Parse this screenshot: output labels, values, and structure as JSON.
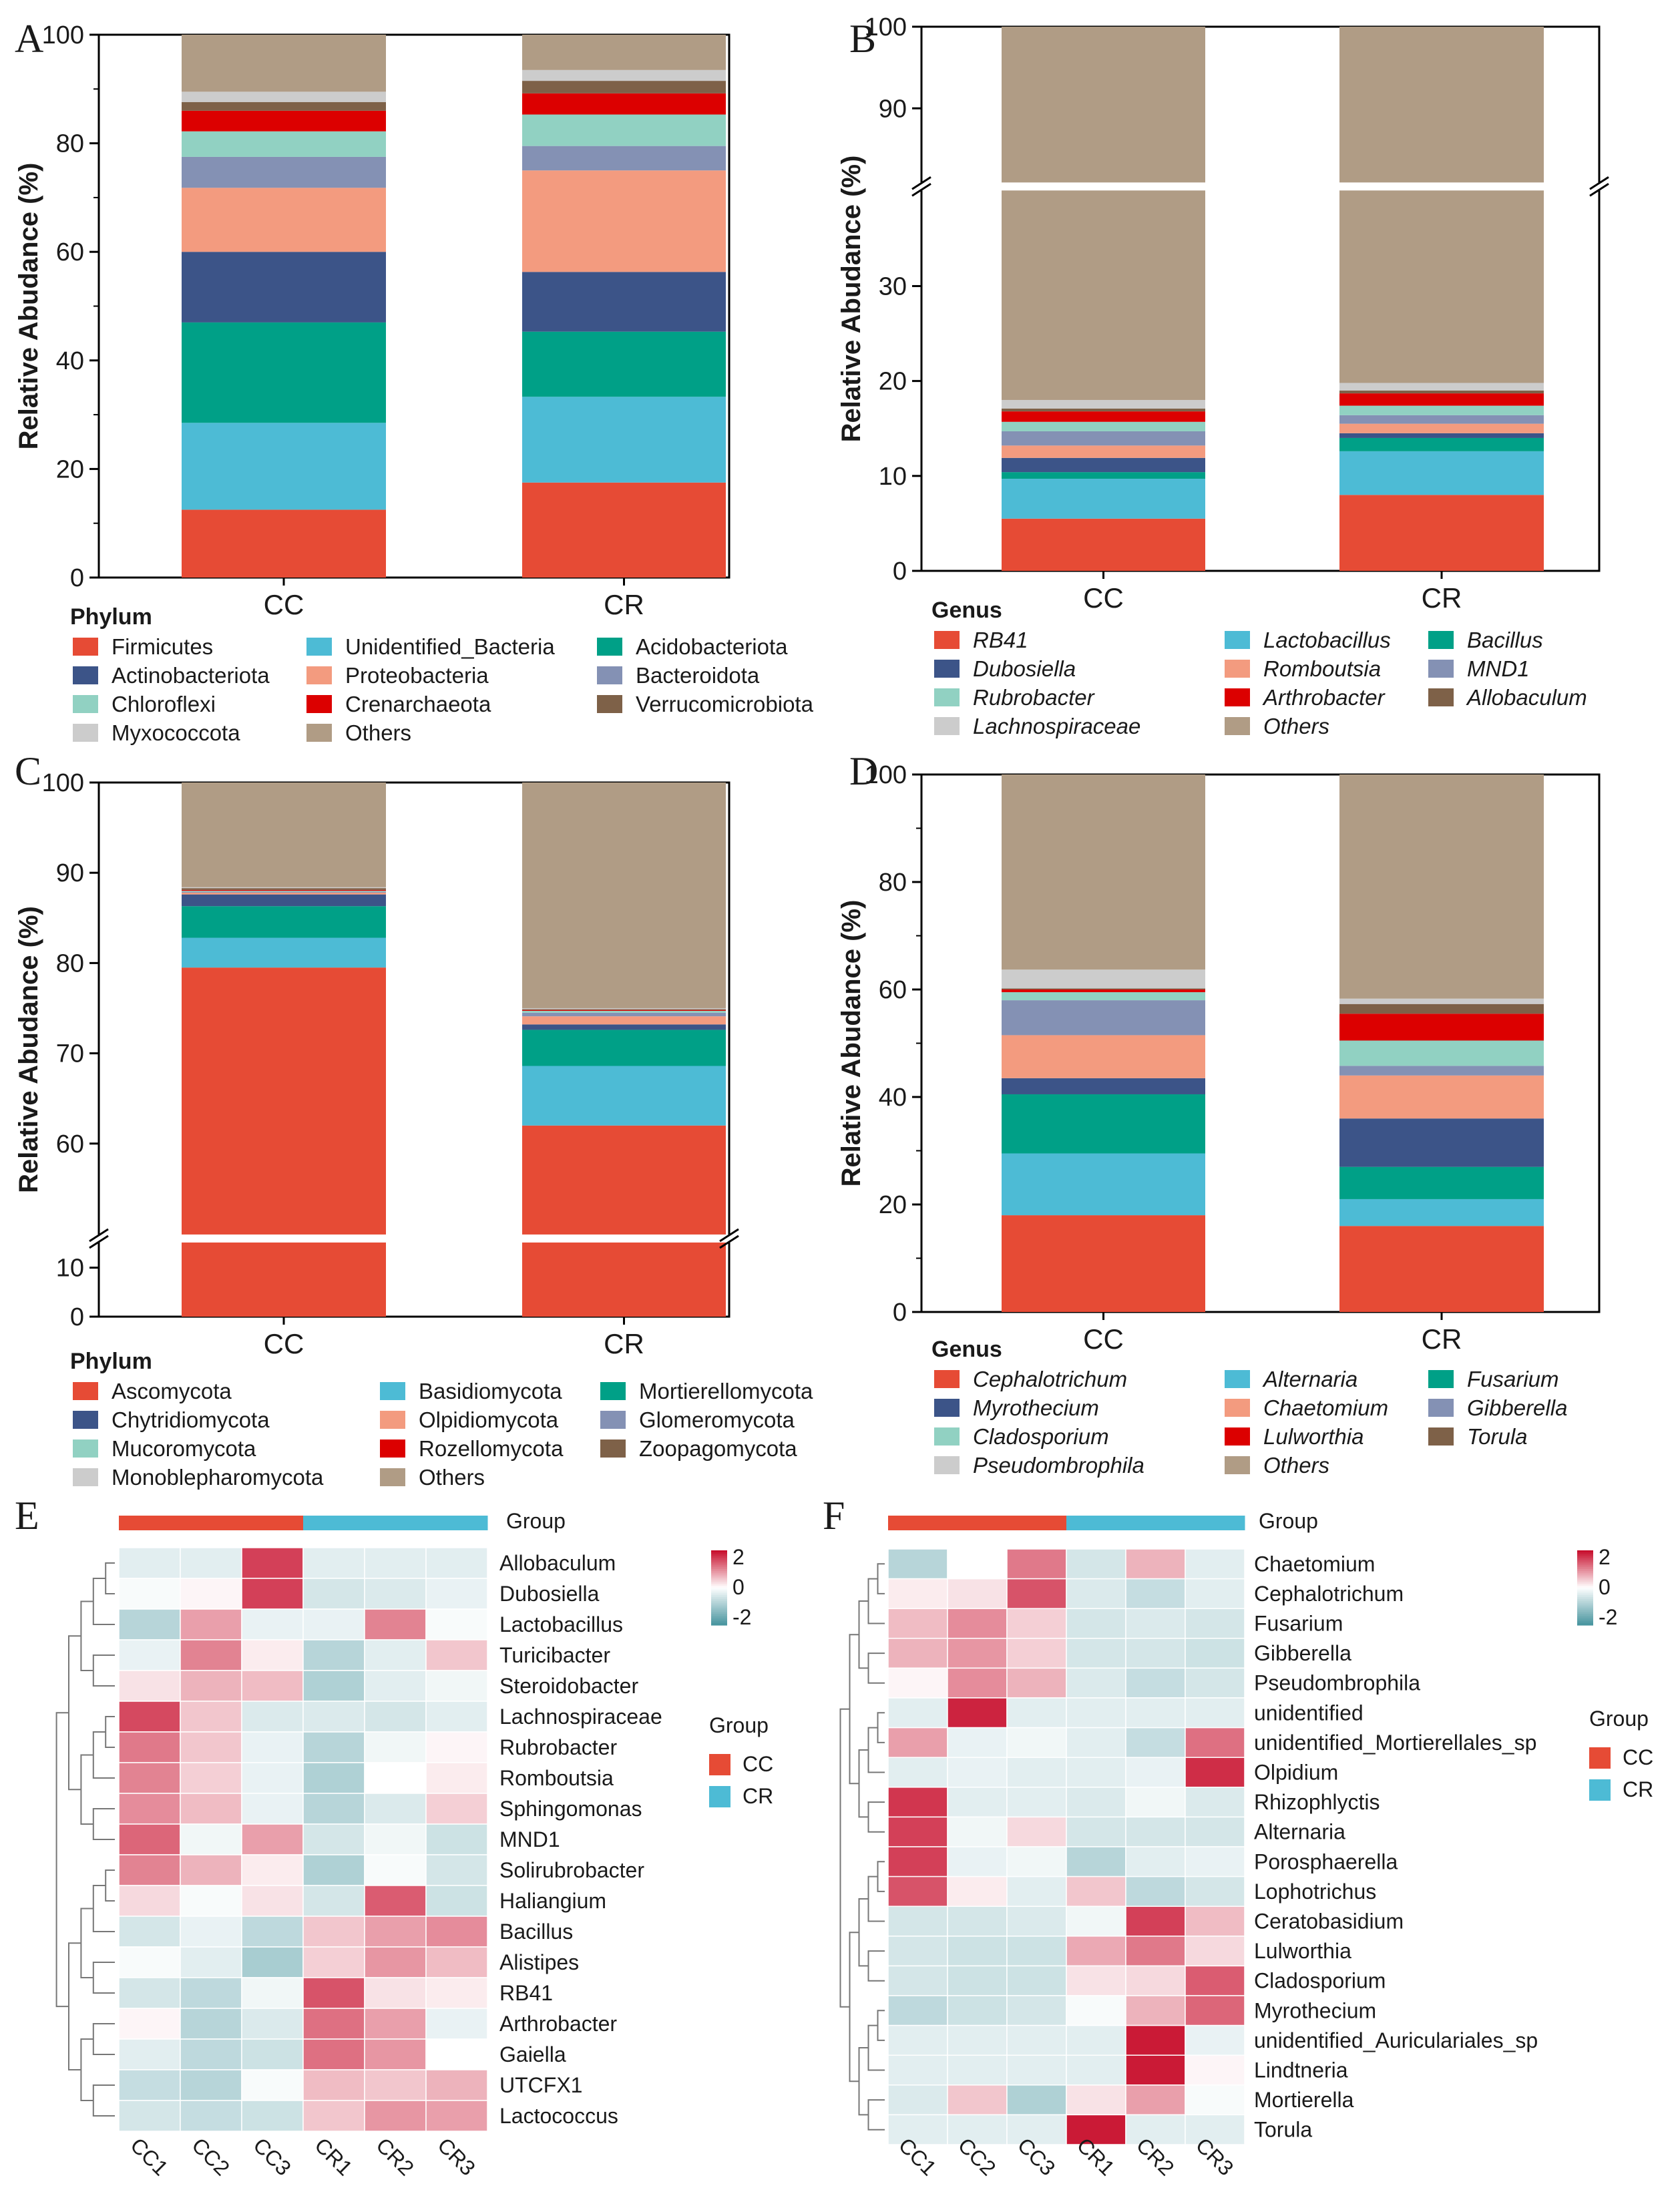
{
  "chart_data": [
    {
      "panel": "A",
      "type": "stacked_bar",
      "ylabel": "Relative Abudance (%)",
      "categories": [
        "CC",
        "CR"
      ],
      "ylim": [
        0,
        100
      ],
      "yticks": [
        0,
        20,
        40,
        60,
        80,
        100
      ],
      "legend_title": "Phylum",
      "italic": false,
      "series": [
        {
          "name": "Firmicutes",
          "color": "#e64b35",
          "values": [
            12.5,
            17.5
          ]
        },
        {
          "name": "Unidentified_Bacteria",
          "color": "#4dbbd5",
          "values": [
            16.0,
            15.8
          ]
        },
        {
          "name": "Acidobacteriota",
          "color": "#00a087",
          "values": [
            18.5,
            12.0
          ]
        },
        {
          "name": "Actinobacteriota",
          "color": "#3c5488",
          "values": [
            13.0,
            11.0
          ]
        },
        {
          "name": "Proteobacteria",
          "color": "#f39b7f",
          "values": [
            11.8,
            18.7
          ]
        },
        {
          "name": "Bacteroidota",
          "color": "#8491b4",
          "values": [
            5.7,
            4.5
          ]
        },
        {
          "name": "Chloroflexi",
          "color": "#91d1c2",
          "values": [
            4.7,
            5.8
          ]
        },
        {
          "name": "Crenarchaeota",
          "color": "#dc0000",
          "values": [
            3.8,
            3.9
          ]
        },
        {
          "name": "Verrucomicrobiota",
          "color": "#7e6148",
          "values": [
            1.6,
            2.3
          ]
        },
        {
          "name": "Myxococcota",
          "color": "#cccccc",
          "values": [
            1.9,
            2.0
          ]
        },
        {
          "name": "Others",
          "color": "#b09c85",
          "values": [
            10.5,
            6.5
          ]
        }
      ],
      "legend_rows": [
        [
          "Firmicutes",
          "Unidentified_Bacteria",
          "Acidobacteriota"
        ],
        [
          "Actinobacteriota",
          "Proteobacteria",
          "Bacteroidota"
        ],
        [
          "Chloroflexi",
          "Crenarchaeota",
          "Verrucomicrobiota"
        ],
        [
          "Myxococcota",
          "Others"
        ]
      ]
    },
    {
      "panel": "B",
      "type": "stacked_bar",
      "ylabel": "Relative Abudance (%)",
      "categories": [
        "CC",
        "CR"
      ],
      "ylim": [
        0,
        100
      ],
      "axis_break": [
        40,
        81
      ],
      "yticks": [
        0,
        10,
        20,
        30,
        90,
        100
      ],
      "legend_title": "Genus",
      "italic": true,
      "series": [
        {
          "name": "RB41",
          "color": "#e64b35",
          "values": [
            5.5,
            8.0
          ]
        },
        {
          "name": "Lactobacillus",
          "color": "#4dbbd5",
          "values": [
            4.2,
            4.6
          ]
        },
        {
          "name": "Bacillus",
          "color": "#00a087",
          "values": [
            0.7,
            1.4
          ]
        },
        {
          "name": "Dubosiella",
          "color": "#3c5488",
          "values": [
            1.5,
            0.5
          ]
        },
        {
          "name": "Romboutsia",
          "color": "#f39b7f",
          "values": [
            1.3,
            1.0
          ]
        },
        {
          "name": "MND1",
          "color": "#8491b4",
          "values": [
            1.5,
            0.9
          ]
        },
        {
          "name": "Rubrobacter",
          "color": "#91d1c2",
          "values": [
            1.0,
            1.0
          ]
        },
        {
          "name": "Arthrobacter",
          "color": "#dc0000",
          "values": [
            1.1,
            1.3
          ]
        },
        {
          "name": "Allobaculum",
          "color": "#7e6148",
          "values": [
            0.3,
            0.3
          ]
        },
        {
          "name": "Lachnospiraceae",
          "color": "#cccccc",
          "values": [
            0.9,
            0.8
          ]
        },
        {
          "name": "Others",
          "color": "#b09c85",
          "values": [
            82.0,
            80.2
          ]
        }
      ],
      "legend_rows": [
        [
          "RB41",
          "Lactobacillus",
          "Bacillus"
        ],
        [
          "Dubosiella",
          "Romboutsia",
          "MND1"
        ],
        [
          "Rubrobacter",
          "Arthrobacter",
          "Allobaculum"
        ],
        [
          "Lachnospiraceae",
          "Others"
        ]
      ]
    },
    {
      "panel": "C",
      "type": "stacked_bar",
      "ylabel": "Relative Abudance (%)",
      "categories": [
        "CC",
        "CR"
      ],
      "ylim": [
        0,
        100
      ],
      "axis_break": [
        15,
        50
      ],
      "yticks": [
        0,
        10,
        60,
        70,
        80,
        90,
        100
      ],
      "legend_title": "Phylum",
      "italic": false,
      "series": [
        {
          "name": "Ascomycota",
          "color": "#e64b35",
          "values": [
            79.5,
            62.0
          ]
        },
        {
          "name": "Basidiomycota",
          "color": "#4dbbd5",
          "values": [
            3.3,
            6.6
          ]
        },
        {
          "name": "Mortierellomycota",
          "color": "#00a087",
          "values": [
            3.5,
            4.0
          ]
        },
        {
          "name": "Chytridiomycota",
          "color": "#3c5488",
          "values": [
            1.3,
            0.6
          ]
        },
        {
          "name": "Olpidiomycota",
          "color": "#f39b7f",
          "values": [
            0.2,
            0.9
          ]
        },
        {
          "name": "Glomeromycota",
          "color": "#8491b4",
          "values": [
            0.1,
            0.4
          ]
        },
        {
          "name": "Mucoromycota",
          "color": "#91d1c2",
          "values": [
            0.1,
            0.2
          ]
        },
        {
          "name": "Rozellomycota",
          "color": "#dc0000",
          "values": [
            0.1,
            0.1
          ]
        },
        {
          "name": "Zoopagomycota",
          "color": "#7e6148",
          "values": [
            0.2,
            0.1
          ]
        },
        {
          "name": "Monoblepharomycota",
          "color": "#cccccc",
          "values": [
            0.1,
            0.1
          ]
        },
        {
          "name": "Others",
          "color": "#b09c85",
          "values": [
            11.6,
            25.0
          ]
        }
      ],
      "legend_rows": [
        [
          "Ascomycota",
          "Basidiomycota",
          "Mortierellomycota"
        ],
        [
          "Chytridiomycota",
          "Olpidiomycota",
          "Glomeromycota"
        ],
        [
          "Mucoromycota",
          "Rozellomycota",
          "Zoopagomycota"
        ],
        [
          "Monoblepharomycota",
          "Others"
        ]
      ]
    },
    {
      "panel": "D",
      "type": "stacked_bar",
      "ylabel": "Relative Abudance (%)",
      "categories": [
        "CC",
        "CR"
      ],
      "ylim": [
        0,
        100
      ],
      "yticks": [
        0,
        20,
        40,
        60,
        80,
        100
      ],
      "legend_title": "Genus",
      "italic": true,
      "series": [
        {
          "name": "Cephalotrichum",
          "color": "#e64b35",
          "values": [
            18.0,
            16.0
          ]
        },
        {
          "name": "Alternaria",
          "color": "#4dbbd5",
          "values": [
            11.5,
            5.0
          ]
        },
        {
          "name": "Fusarium",
          "color": "#00a087",
          "values": [
            11.0,
            6.0
          ]
        },
        {
          "name": "Myrothecium",
          "color": "#3c5488",
          "values": [
            3.0,
            9.0
          ]
        },
        {
          "name": "Chaetomium",
          "color": "#f39b7f",
          "values": [
            8.0,
            8.0
          ]
        },
        {
          "name": "Gibberella",
          "color": "#8491b4",
          "values": [
            6.5,
            1.8
          ]
        },
        {
          "name": "Cladosporium",
          "color": "#91d1c2",
          "values": [
            1.5,
            4.7
          ]
        },
        {
          "name": "Lulworthia",
          "color": "#dc0000",
          "values": [
            0.5,
            5.0
          ]
        },
        {
          "name": "Torula",
          "color": "#7e6148",
          "values": [
            0.2,
            1.8
          ]
        },
        {
          "name": "Pseudombrophila",
          "color": "#cccccc",
          "values": [
            3.5,
            1.0
          ]
        },
        {
          "name": "Others",
          "color": "#b09c85",
          "values": [
            36.3,
            41.7
          ]
        }
      ],
      "legend_rows": [
        [
          "Cephalotrichum",
          "Alternaria",
          "Fusarium"
        ],
        [
          "Myrothecium",
          "Chaetomium",
          "Gibberella"
        ],
        [
          "Cladosporium",
          "Lulworthia",
          "Torula"
        ],
        [
          "Pseudombrophila",
          "Others"
        ]
      ]
    },
    {
      "panel": "E",
      "type": "heatmap",
      "columns": [
        "CC1",
        "CC2",
        "CC3",
        "CR1",
        "CR2",
        "CR3"
      ],
      "group_bar_label": "Group",
      "column_groups": [
        "CC",
        "CC",
        "CC",
        "CR",
        "CR",
        "CR"
      ],
      "group_legend_title": "Group",
      "groups": [
        {
          "name": "CC",
          "color": "#e64b35"
        },
        {
          "name": "CR",
          "color": "#4dbbd5"
        }
      ],
      "scale_ticks": [
        2,
        0,
        -2
      ],
      "value_range": [
        -2.5,
        2.5
      ],
      "rows": [
        {
          "name": "Allobaculum",
          "values": [
            -0.4,
            -0.4,
            2.0,
            -0.4,
            -0.4,
            -0.4
          ]
        },
        {
          "name": "Dubosiella",
          "values": [
            -0.1,
            0.1,
            2.0,
            -0.6,
            -0.5,
            -0.3
          ]
        },
        {
          "name": "Lactobacillus",
          "values": [
            -1.0,
            1.0,
            -0.3,
            -0.3,
            1.3,
            -0.1
          ]
        },
        {
          "name": "Turicibacter",
          "values": [
            -0.3,
            1.3,
            0.2,
            -1.0,
            -0.4,
            0.6
          ]
        },
        {
          "name": "Steroidobacter",
          "values": [
            0.3,
            0.8,
            0.7,
            -1.1,
            -0.4,
            -0.2
          ]
        },
        {
          "name": "Lachnospiraceae",
          "values": [
            1.9,
            0.6,
            -0.5,
            -0.5,
            -0.6,
            -0.4
          ]
        },
        {
          "name": "Rubrobacter",
          "values": [
            1.4,
            0.6,
            -0.3,
            -1.0,
            -0.2,
            0.1
          ]
        },
        {
          "name": "Romboutsia",
          "values": [
            1.3,
            0.5,
            -0.3,
            -1.1,
            0.0,
            0.2
          ]
        },
        {
          "name": "Sphingomonas",
          "values": [
            1.2,
            0.7,
            -0.3,
            -1.0,
            -0.5,
            0.5
          ]
        },
        {
          "name": "MND1",
          "values": [
            1.6,
            -0.2,
            1.0,
            -0.6,
            -0.2,
            -0.7
          ]
        },
        {
          "name": "Solirubrobacter",
          "values": [
            1.3,
            0.8,
            0.2,
            -1.1,
            -0.1,
            -0.6
          ]
        },
        {
          "name": "Haliangium",
          "values": [
            0.4,
            -0.1,
            0.3,
            -0.6,
            1.7,
            -0.7
          ]
        },
        {
          "name": "Bacillus",
          "values": [
            -0.6,
            -0.3,
            -0.9,
            0.6,
            1.0,
            1.2
          ]
        },
        {
          "name": "Alistipes",
          "values": [
            -0.1,
            -0.4,
            -1.2,
            0.5,
            1.1,
            0.7
          ]
        },
        {
          "name": "RB41",
          "values": [
            -0.6,
            -0.9,
            -0.2,
            1.8,
            0.3,
            0.2
          ]
        },
        {
          "name": "Arthrobacter",
          "values": [
            0.1,
            -1.0,
            -0.5,
            1.5,
            1.0,
            -0.3
          ]
        },
        {
          "name": "Gaiella",
          "values": [
            -0.4,
            -0.9,
            -0.7,
            1.5,
            1.1,
            0.0
          ]
        },
        {
          "name": "UTCFX1",
          "values": [
            -0.8,
            -1.0,
            -0.1,
            0.7,
            0.6,
            0.8
          ]
        },
        {
          "name": "Lactococcus",
          "values": [
            -0.6,
            -0.8,
            -0.7,
            0.6,
            1.1,
            1.0
          ]
        }
      ]
    },
    {
      "panel": "F",
      "type": "heatmap",
      "columns": [
        "CC1",
        "CC2",
        "CC3",
        "CR1",
        "CR2",
        "CR3"
      ],
      "group_bar_label": "Group",
      "column_groups": [
        "CC",
        "CC",
        "CC",
        "CR",
        "CR",
        "CR"
      ],
      "group_legend_title": "Group",
      "groups": [
        {
          "name": "CC",
          "color": "#e64b35"
        },
        {
          "name": "CR",
          "color": "#4dbbd5"
        }
      ],
      "scale_ticks": [
        2,
        0,
        -2
      ],
      "value_range": [
        -2.5,
        2.5
      ],
      "rows": [
        {
          "name": "Chaetomium",
          "values": [
            -1.0,
            0.0,
            1.4,
            -0.6,
            0.8,
            -0.4
          ]
        },
        {
          "name": "Cephalotrichum",
          "values": [
            0.2,
            0.3,
            1.8,
            -0.5,
            -0.8,
            -0.4
          ]
        },
        {
          "name": "Fusarium",
          "values": [
            0.7,
            1.2,
            0.5,
            -0.6,
            -0.5,
            -0.6
          ]
        },
        {
          "name": "Gibberella",
          "values": [
            0.8,
            1.1,
            0.5,
            -0.6,
            -0.6,
            -0.7
          ]
        },
        {
          "name": "Pseudombrophila",
          "values": [
            0.1,
            1.2,
            0.8,
            -0.5,
            -0.8,
            -0.6
          ]
        },
        {
          "name": "unidentified",
          "values": [
            -0.4,
            2.3,
            -0.4,
            -0.4,
            -0.4,
            -0.4
          ]
        },
        {
          "name": "unidentified_Mortierellales_sp",
          "values": [
            1.0,
            -0.3,
            -0.2,
            -0.4,
            -0.8,
            1.5
          ]
        },
        {
          "name": "Olpidium",
          "values": [
            -0.4,
            -0.3,
            -0.4,
            -0.4,
            -0.3,
            2.2
          ]
        },
        {
          "name": "Rhizophlyctis",
          "values": [
            2.1,
            -0.4,
            -0.4,
            -0.5,
            -0.2,
            -0.5
          ]
        },
        {
          "name": "Alternaria",
          "values": [
            2.0,
            -0.2,
            0.4,
            -0.6,
            -0.6,
            -0.6
          ]
        },
        {
          "name": "Porosphaerella",
          "values": [
            2.0,
            -0.3,
            -0.2,
            -1.0,
            -0.4,
            -0.3
          ]
        },
        {
          "name": "Lophotrichus",
          "values": [
            1.8,
            0.2,
            -0.4,
            0.6,
            -0.9,
            -0.6
          ]
        },
        {
          "name": "Ceratobasidium",
          "values": [
            -0.6,
            -0.6,
            -0.5,
            -0.2,
            2.0,
            0.7
          ]
        },
        {
          "name": "Lulworthia",
          "values": [
            -0.6,
            -0.7,
            -0.7,
            0.9,
            1.4,
            0.4
          ]
        },
        {
          "name": "Cladosporium",
          "values": [
            -0.6,
            -0.7,
            -0.7,
            0.3,
            0.4,
            1.7
          ]
        },
        {
          "name": "Myrothecium",
          "values": [
            -0.9,
            -0.7,
            -0.6,
            -0.1,
            0.8,
            1.6
          ]
        },
        {
          "name": "unidentified_Auriculariales_sp",
          "values": [
            -0.4,
            -0.4,
            -0.4,
            -0.4,
            2.4,
            -0.3
          ]
        },
        {
          "name": "Lindtneria",
          "values": [
            -0.4,
            -0.4,
            -0.4,
            -0.4,
            2.4,
            0.1
          ]
        },
        {
          "name": "Mortierella",
          "values": [
            -0.5,
            0.6,
            -1.1,
            0.3,
            1.0,
            -0.1
          ]
        },
        {
          "name": "Torula",
          "values": [
            -0.4,
            -0.4,
            -0.4,
            2.4,
            -0.4,
            -0.4
          ]
        }
      ]
    }
  ],
  "panel_labels": [
    "A",
    "B",
    "C",
    "D",
    "E",
    "F"
  ]
}
